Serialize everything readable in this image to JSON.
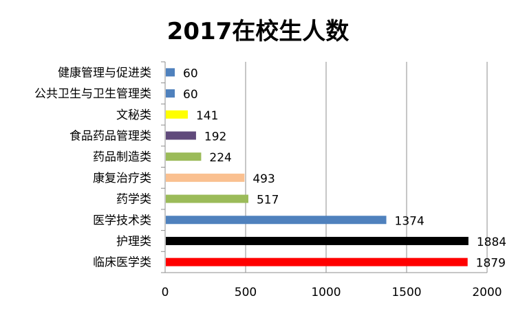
{
  "chart_data": {
    "type": "bar",
    "orientation": "horizontal",
    "title": "2017在校生人数",
    "categories": [
      "健康管理与促进类",
      "公共卫生与卫生管理类",
      "文秘类",
      "食品药品管理类",
      "药品制造类",
      "康复治疗类",
      "药学类",
      "医学技术类",
      "护理类",
      "临床医学类"
    ],
    "values": [
      60,
      60,
      141,
      192,
      224,
      493,
      517,
      1374,
      1884,
      1879
    ],
    "colors": [
      "#4F81BD",
      "#4F81BD",
      "#FFFF00",
      "#604A7B",
      "#9BBB59",
      "#FAC090",
      "#9BBB59",
      "#4F81BD",
      "#000000",
      "#FF0000"
    ],
    "xlim": [
      0,
      2000
    ],
    "xticks": [
      0,
      500,
      1000,
      1500,
      2000
    ],
    "grid": "vertical",
    "legend": "none",
    "data_labels": true
  }
}
